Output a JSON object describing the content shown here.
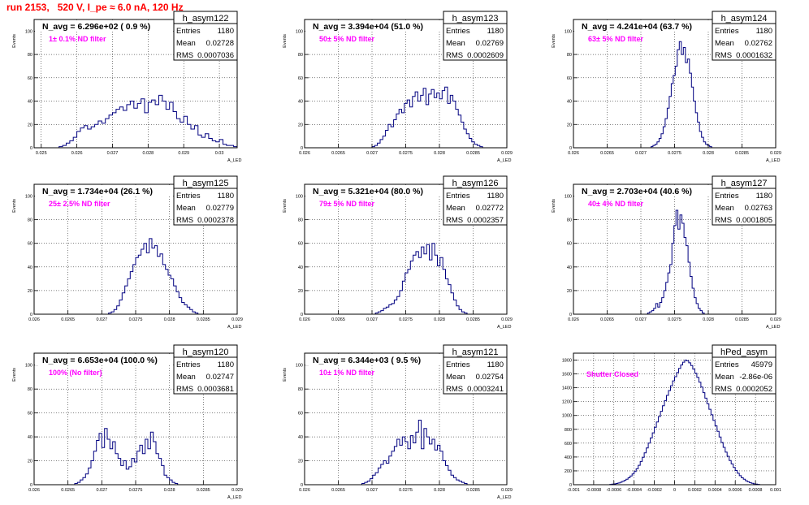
{
  "page_title": "run 2153,   520 V, I_pe ≈ 6.0 nA, 120 Hz",
  "style": {
    "frame_color": "#000000",
    "hist_color": "#000080",
    "annotation_color": "#ff00ff",
    "title_color": "#ff0000",
    "grid_color": "#000000"
  },
  "chart_data": [
    {
      "type": "bar",
      "name": "h_asym122",
      "stats_title": "h_asym122",
      "entries": "1180",
      "mean": "0.02728",
      "rms": "0.0007036",
      "navg_label": "N_avg = 6.296e+02 ( 0.9 %)",
      "filter_label": "1± 0.1% ND filter",
      "xlabel": "A_LED",
      "ylabel": "Events",
      "xlim": [
        0.0248,
        0.0305
      ],
      "ylim": [
        0,
        110
      ],
      "xticks": [
        "0.025",
        "0.026",
        "0.027",
        "0.028",
        "0.029",
        "0.03"
      ],
      "xtick_vals": [
        0.025,
        0.026,
        0.027,
        0.028,
        0.029,
        0.03
      ],
      "yticks": [
        "20",
        "40",
        "60",
        "80",
        "100"
      ],
      "ytick_vals": [
        20,
        40,
        60,
        80,
        100
      ],
      "x_start": 0.0255,
      "x_step": 0.0001,
      "values": [
        1,
        2,
        4,
        6,
        9,
        14,
        17,
        19,
        16,
        18,
        20,
        23,
        21,
        25,
        28,
        30,
        33,
        35,
        32,
        37,
        40,
        34,
        38,
        42,
        30,
        39,
        41,
        37,
        45,
        40,
        33,
        39,
        31,
        25,
        22,
        27,
        20,
        16,
        19,
        11,
        9,
        12,
        8,
        6,
        5,
        7,
        3,
        2,
        2,
        1
      ]
    },
    {
      "type": "bar",
      "name": "h_asym123",
      "stats_title": "h_asym123",
      "entries": "1180",
      "mean": "0.02769",
      "rms": "0.0002609",
      "navg_label": "N_avg = 3.394e+04 (51.0 %)",
      "filter_label": "50± 5% ND filter",
      "xlabel": "A_LED",
      "ylabel": "Events",
      "xlim": [
        0.026,
        0.029
      ],
      "ylim": [
        0,
        110
      ],
      "xticks": [
        "0.026",
        "0.0265",
        "0.027",
        "0.0275",
        "0.028",
        "0.0285",
        "0.029"
      ],
      "xtick_vals": [
        0.026,
        0.0265,
        0.027,
        0.0275,
        0.028,
        0.0285,
        0.029
      ],
      "yticks": [
        "20",
        "40",
        "60",
        "80",
        "100"
      ],
      "ytick_vals": [
        20,
        40,
        60,
        80,
        100
      ],
      "x_start": 0.027,
      "x_step": 4e-05,
      "values": [
        1,
        2,
        4,
        7,
        10,
        15,
        20,
        18,
        24,
        29,
        33,
        30,
        38,
        41,
        35,
        44,
        48,
        40,
        45,
        51,
        37,
        46,
        50,
        43,
        47,
        42,
        49,
        52,
        38,
        45,
        40,
        33,
        28,
        22,
        16,
        12,
        8,
        5,
        3,
        2,
        1
      ]
    },
    {
      "type": "bar",
      "name": "h_asym124",
      "stats_title": "h_asym124",
      "entries": "1180",
      "mean": "0.02762",
      "rms": "0.0001632",
      "navg_label": "N_avg = 4.241e+04 (63.7 %)",
      "filter_label": "63± 5% ND filter",
      "xlabel": "A_LED",
      "ylabel": "Events",
      "xlim": [
        0.026,
        0.029
      ],
      "ylim": [
        0,
        110
      ],
      "xticks": [
        "0.026",
        "0.0265",
        "0.027",
        "0.0275",
        "0.028",
        "0.0285",
        "0.029"
      ],
      "xtick_vals": [
        0.026,
        0.0265,
        0.027,
        0.0275,
        0.028,
        0.0285,
        0.029
      ],
      "yticks": [
        "20",
        "40",
        "60",
        "80",
        "100"
      ],
      "ytick_vals": [
        20,
        40,
        60,
        80,
        100
      ],
      "x_start": 0.02715,
      "x_step": 3e-05,
      "values": [
        1,
        2,
        3,
        5,
        8,
        12,
        18,
        25,
        34,
        44,
        55,
        62,
        70,
        84,
        91,
        80,
        86,
        73,
        76,
        64,
        52,
        40,
        30,
        22,
        14,
        9,
        5,
        3,
        2,
        1
      ]
    },
    {
      "type": "bar",
      "name": "h_asym125",
      "stats_title": "h_asym125",
      "entries": "1180",
      "mean": "0.02779",
      "rms": "0.0002378",
      "navg_label": "N_avg = 1.734e+04 (26.1 %)",
      "filter_label": "25± 2.5% ND filter",
      "xlabel": "A_LED",
      "ylabel": "Events",
      "xlim": [
        0.026,
        0.029
      ],
      "ylim": [
        0,
        110
      ],
      "xticks": [
        "0.026",
        "0.0265",
        "0.027",
        "0.0275",
        "0.028",
        "0.0285",
        "0.029"
      ],
      "xtick_vals": [
        0.026,
        0.0265,
        0.027,
        0.0275,
        0.028,
        0.0285,
        0.029
      ],
      "yticks": [
        "20",
        "40",
        "60",
        "80",
        "100"
      ],
      "ytick_vals": [
        20,
        40,
        60,
        80,
        100
      ],
      "x_start": 0.0271,
      "x_step": 4e-05,
      "values": [
        1,
        2,
        4,
        7,
        12,
        18,
        24,
        30,
        36,
        42,
        48,
        50,
        55,
        60,
        52,
        64,
        56,
        58,
        49,
        51,
        42,
        38,
        33,
        30,
        24,
        19,
        14,
        10,
        8,
        6,
        4,
        2,
        1
      ]
    },
    {
      "type": "bar",
      "name": "h_asym126",
      "stats_title": "h_asym126",
      "entries": "1180",
      "mean": "0.02772",
      "rms": "0.0002357",
      "navg_label": "N_avg = 5.321e+04 (80.0 %)",
      "filter_label": "79± 5% ND filter",
      "xlabel": "A_LED",
      "ylabel": "Events",
      "xlim": [
        0.026,
        0.029
      ],
      "ylim": [
        0,
        110
      ],
      "xticks": [
        "0.026",
        "0.0265",
        "0.027",
        "0.0275",
        "0.028",
        "0.0285",
        "0.029"
      ],
      "xtick_vals": [
        0.026,
        0.0265,
        0.027,
        0.0275,
        0.028,
        0.0285,
        0.029
      ],
      "yticks": [
        "20",
        "40",
        "60",
        "80",
        "100"
      ],
      "ytick_vals": [
        20,
        40,
        60,
        80,
        100
      ],
      "x_start": 0.02705,
      "x_step": 4e-05,
      "values": [
        1,
        2,
        3,
        5,
        6,
        8,
        9,
        12,
        15,
        20,
        28,
        35,
        38,
        45,
        50,
        53,
        48,
        57,
        51,
        59,
        46,
        60,
        50,
        41,
        48,
        38,
        30,
        25,
        18,
        12,
        7,
        4,
        2,
        1
      ]
    },
    {
      "type": "bar",
      "name": "h_asym127",
      "stats_title": "h_asym127",
      "entries": "1180",
      "mean": "0.02763",
      "rms": "0.0001805",
      "navg_label": "N_avg = 2.703e+04 (40.6 %)",
      "filter_label": "40± 4% ND filter",
      "xlabel": "A_LED",
      "ylabel": "Events",
      "xlim": [
        0.026,
        0.029
      ],
      "ylim": [
        0,
        110
      ],
      "xticks": [
        "0.026",
        "0.0265",
        "0.027",
        "0.0275",
        "0.028",
        "0.0285",
        "0.029"
      ],
      "xtick_vals": [
        0.026,
        0.0265,
        0.027,
        0.0275,
        0.028,
        0.0285,
        0.029
      ],
      "yticks": [
        "20",
        "40",
        "60",
        "80",
        "100"
      ],
      "ytick_vals": [
        20,
        40,
        60,
        80,
        100
      ],
      "x_start": 0.0271,
      "x_step": 3e-05,
      "values": [
        1,
        2,
        3,
        5,
        9,
        6,
        10,
        14,
        20,
        27,
        35,
        42,
        60,
        75,
        88,
        72,
        84,
        77,
        65,
        58,
        44,
        32,
        22,
        14,
        9,
        5,
        3,
        1
      ]
    },
    {
      "type": "bar",
      "name": "h_asym120",
      "stats_title": "h_asym120",
      "entries": "1180",
      "mean": "0.02747",
      "rms": "0.0003681",
      "navg_label": "N_avg = 6.653e+04 (100.0 %)",
      "filter_label": "100% (No filter)",
      "xlabel": "A_LED",
      "ylabel": "Events",
      "xlim": [
        0.026,
        0.029
      ],
      "ylim": [
        0,
        110
      ],
      "xticks": [
        "0.026",
        "0.0265",
        "0.027",
        "0.0275",
        "0.028",
        "0.0285",
        "0.029"
      ],
      "xtick_vals": [
        0.026,
        0.0265,
        0.027,
        0.0275,
        0.028,
        0.0285,
        0.029
      ],
      "yticks": [
        "20",
        "40",
        "60",
        "80",
        "100"
      ],
      "ytick_vals": [
        20,
        40,
        60,
        80,
        100
      ],
      "x_start": 0.0266,
      "x_step": 4e-05,
      "values": [
        1,
        2,
        4,
        6,
        9,
        14,
        20,
        28,
        37,
        43,
        31,
        47,
        38,
        30,
        36,
        26,
        22,
        16,
        20,
        13,
        15,
        22,
        19,
        28,
        33,
        26,
        38,
        30,
        44,
        36,
        26,
        22,
        16,
        8,
        6,
        4,
        2,
        1
      ]
    },
    {
      "type": "bar",
      "name": "h_asym121",
      "stats_title": "h_asym121",
      "entries": "1180",
      "mean": "0.02754",
      "rms": "0.0003241",
      "navg_label": "N_avg = 6.344e+03 ( 9.5 %)",
      "filter_label": "10± 1% ND filter",
      "xlabel": "A_LED",
      "ylabel": "Events",
      "xlim": [
        0.026,
        0.029
      ],
      "ylim": [
        0,
        110
      ],
      "xticks": [
        "0.026",
        "0.0265",
        "0.027",
        "0.0275",
        "0.028",
        "0.0285",
        "0.029"
      ],
      "xtick_vals": [
        0.026,
        0.0265,
        0.027,
        0.0275,
        0.028,
        0.0285,
        0.029
      ],
      "yticks": [
        "20",
        "40",
        "60",
        "80",
        "100"
      ],
      "ytick_vals": [
        20,
        40,
        60,
        80,
        100
      ],
      "x_start": 0.02685,
      "x_step": 4e-05,
      "values": [
        1,
        2,
        3,
        5,
        8,
        10,
        14,
        17,
        20,
        18,
        24,
        28,
        32,
        38,
        33,
        40,
        36,
        30,
        41,
        35,
        44,
        54,
        30,
        47,
        40,
        34,
        38,
        29,
        33,
        28,
        20,
        16,
        12,
        8,
        6,
        4,
        3,
        2,
        1
      ]
    },
    {
      "type": "bar",
      "name": "hPed_asym",
      "stats_title": "hPed_asym",
      "entries": "45979",
      "mean": "-2.86e-06",
      "rms": "0.0002052",
      "navg_label": "",
      "filter_label": "Shutter Closed",
      "xlabel": "",
      "ylabel": "",
      "xlim": [
        -0.001,
        0.001
      ],
      "ylim": [
        0,
        1900
      ],
      "xticks": [
        "-0.001",
        "-0.0008",
        "-0.0006",
        "-0.0004",
        "-0.0002",
        "0",
        "0.0002",
        "0.0004",
        "0.0006",
        "0.0008",
        "0.001"
      ],
      "xtick_vals": [
        -0.001,
        -0.0008,
        -0.0006,
        -0.0004,
        -0.0002,
        0,
        0.0002,
        0.0004,
        0.0006,
        0.0008,
        0.001
      ],
      "yticks": [
        "200",
        "400",
        "600",
        "800",
        "1000",
        "1200",
        "1400",
        "1600",
        "1800"
      ],
      "ytick_vals": [
        200,
        400,
        600,
        800,
        1000,
        1200,
        1400,
        1600,
        1800
      ],
      "x_start": -0.00064,
      "x_step": 2e-05,
      "values": [
        5,
        8,
        12,
        18,
        25,
        35,
        48,
        62,
        80,
        100,
        125,
        155,
        190,
        230,
        280,
        335,
        395,
        460,
        530,
        600,
        675,
        750,
        830,
        905,
        985,
        1060,
        1140,
        1215,
        1290,
        1360,
        1430,
        1500,
        1560,
        1620,
        1680,
        1730,
        1770,
        1800,
        1790,
        1760,
        1720,
        1670,
        1610,
        1550,
        1480,
        1410,
        1330,
        1250,
        1170,
        1090,
        1010,
        930,
        850,
        770,
        690,
        610,
        540,
        470,
        410,
        350,
        300,
        250,
        205,
        165,
        130,
        100,
        78,
        58,
        42,
        30,
        20,
        13,
        8,
        5
      ]
    }
  ]
}
